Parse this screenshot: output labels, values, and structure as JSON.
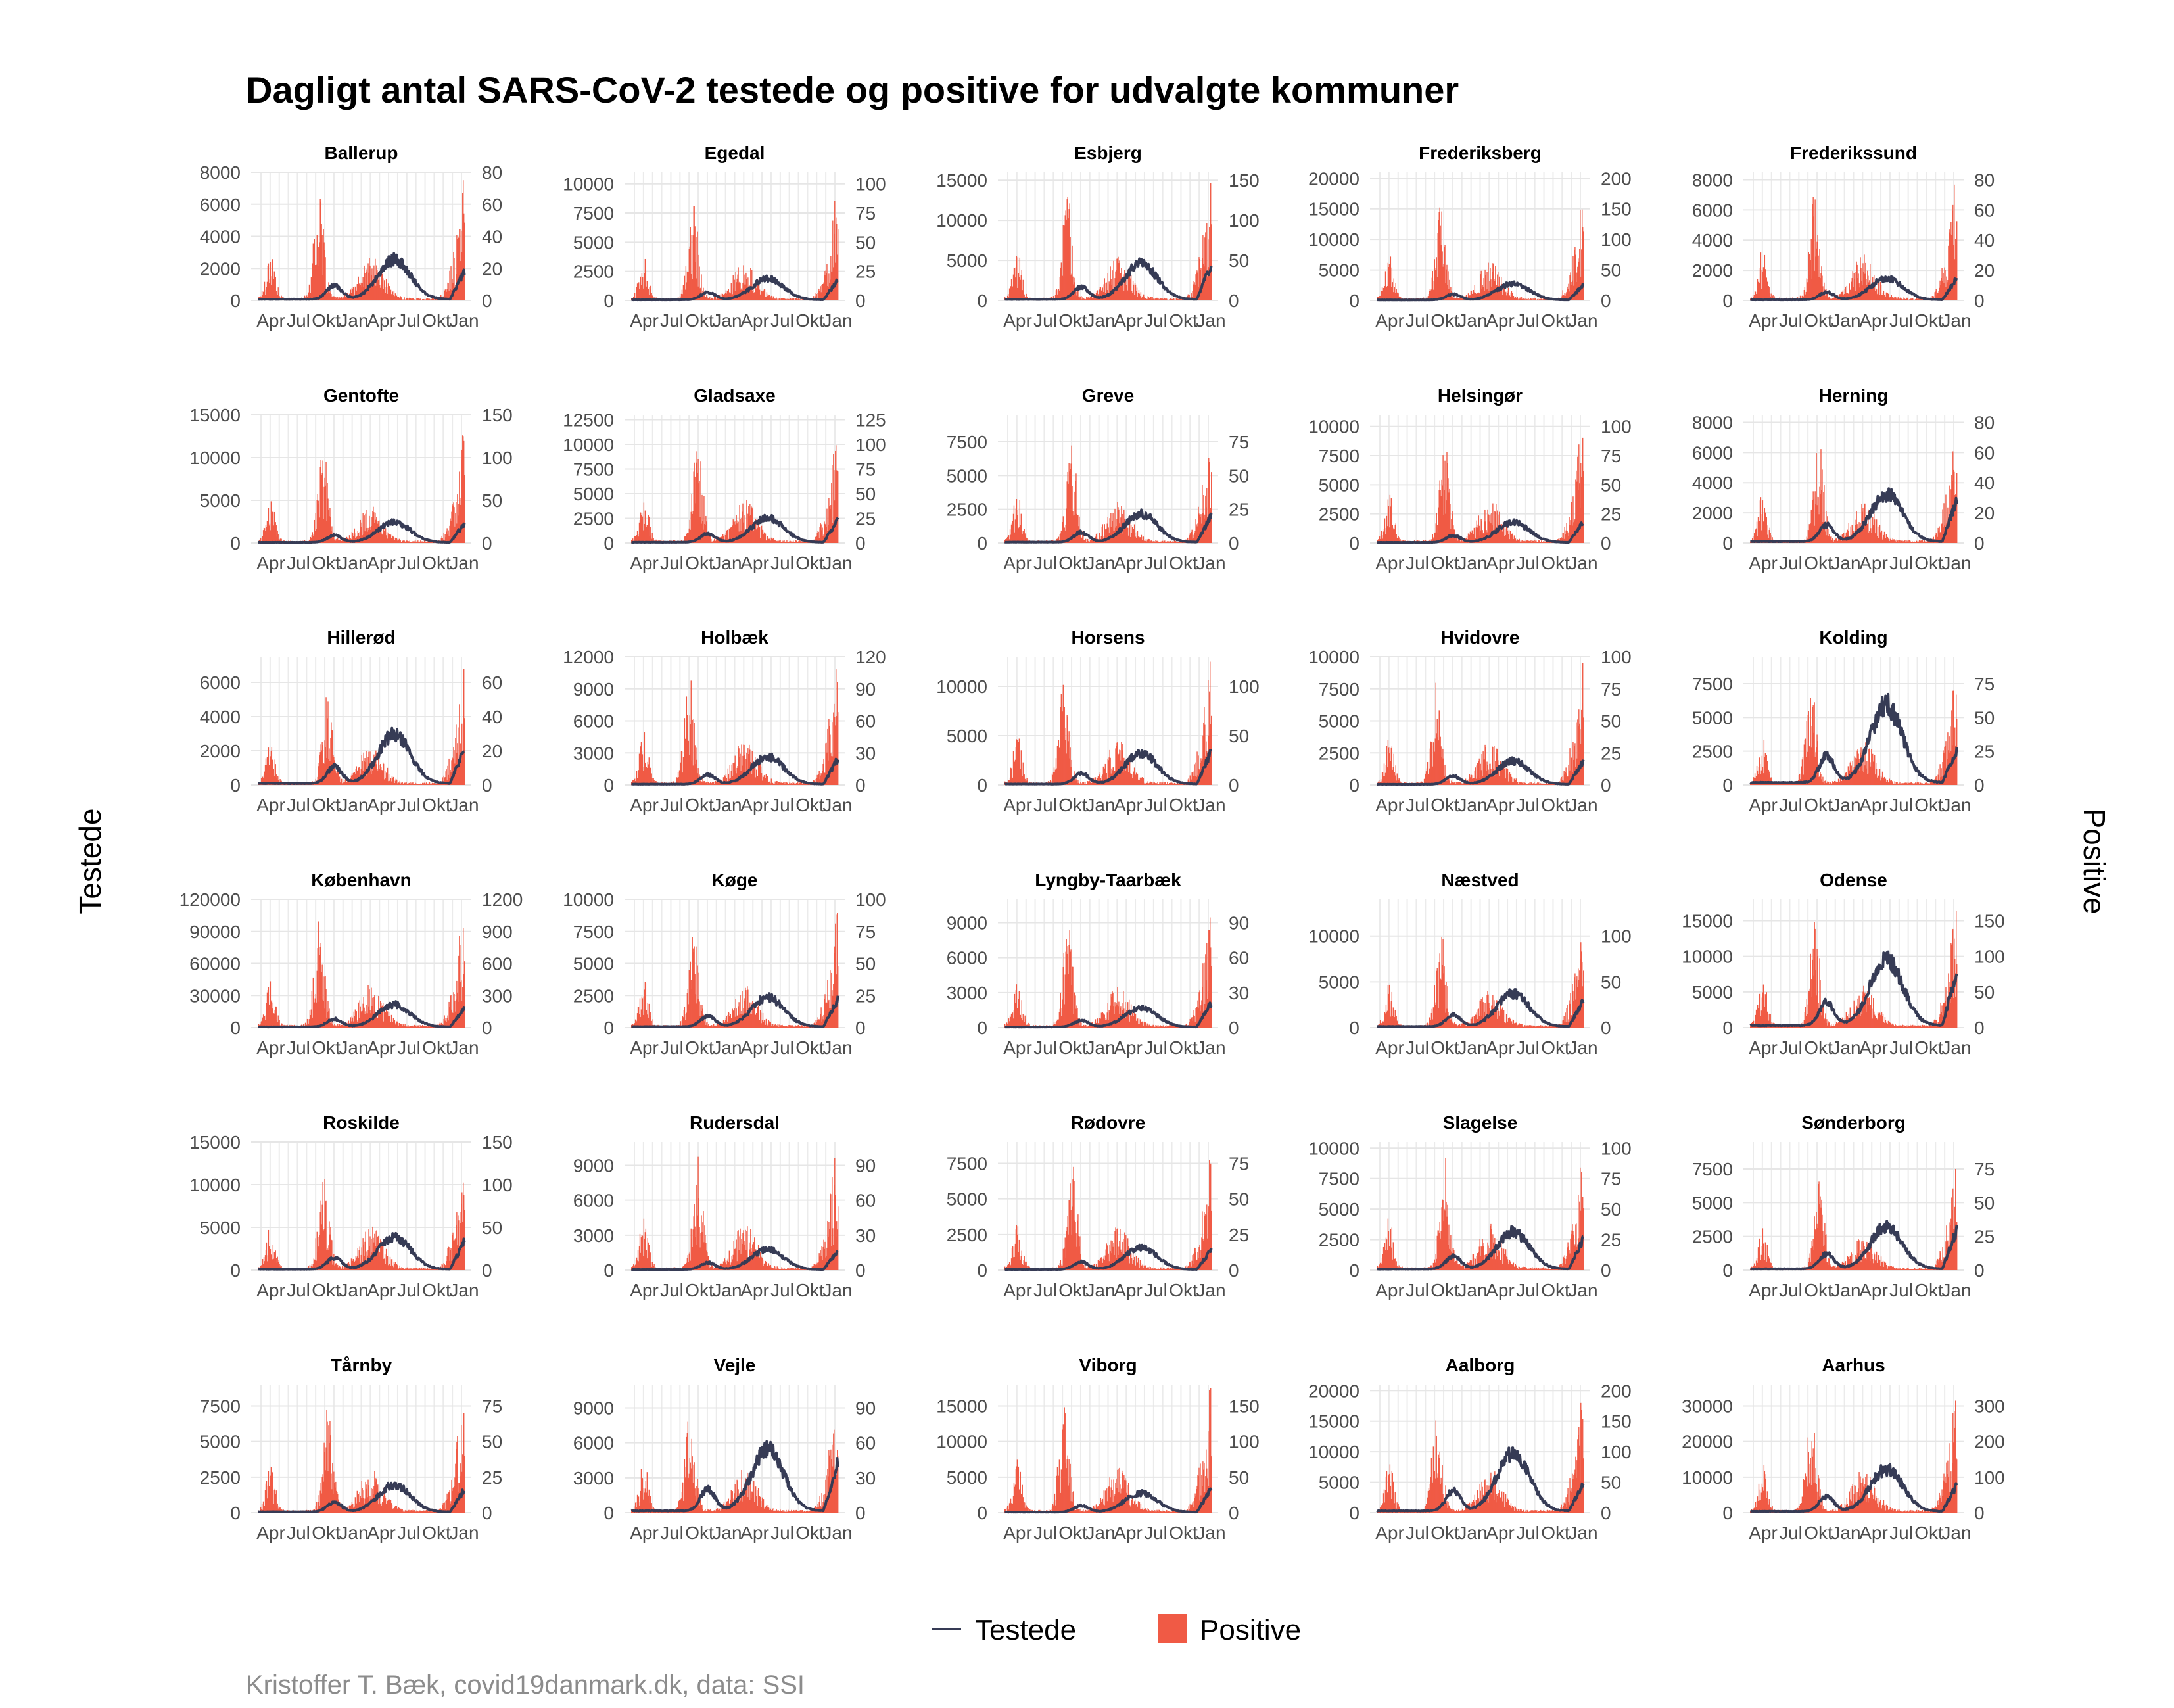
{
  "chart_data": {
    "type": "bar",
    "title": "Dagligt antal SARS-CoV-2 testede og positive for udvalgte kommuner",
    "ylabel_left": "Testede",
    "ylabel_right": "Positive",
    "caption": "Kristoffer T. Bæk, covid19danmark.dk, data: SSI",
    "x_ticks": [
      "Apr",
      "Jul",
      "Okt",
      "Jan",
      "Apr",
      "Jul",
      "Okt",
      "Jan"
    ],
    "legend": {
      "position": "bottom",
      "items": [
        {
          "name": "Testede",
          "kind": "line",
          "color": "#363b55"
        },
        {
          "name": "Positive",
          "kind": "bar",
          "color": "#f05a45"
        }
      ]
    },
    "colors": {
      "testede": "#363b55",
      "positive": "#f05a45",
      "grid": "#ebebeb"
    },
    "grid": true,
    "panels": [
      {
        "name": "Ballerup",
        "left_ticks": [
          "0",
          "2000",
          "4000",
          "6000",
          "8000"
        ],
        "right_ticks": [
          "0",
          "20",
          "40",
          "60",
          "80"
        ],
        "tested_max": 8000,
        "positive_max": 80,
        "tested_peak": 2600,
        "positive_peak": 75,
        "tested_end": 2000
      },
      {
        "name": "Egedal",
        "left_ticks": [
          "0",
          "2500",
          "5000",
          "7500",
          "10000"
        ],
        "right_ticks": [
          "0",
          "25",
          "50",
          "75",
          "100"
        ],
        "tested_max": 11000,
        "positive_max": 110,
        "tested_peak": 1900,
        "positive_peak": 95,
        "tested_end": 1900
      },
      {
        "name": "Esbjerg",
        "left_ticks": [
          "0",
          "5000",
          "10000",
          "15000"
        ],
        "right_ticks": [
          "0",
          "50",
          "100",
          "150"
        ],
        "tested_max": 16000,
        "positive_max": 160,
        "tested_peak": 4700,
        "positive_peak": 150,
        "tested_end": 5000
      },
      {
        "name": "Frederiksberg",
        "left_ticks": [
          "0",
          "5000",
          "10000",
          "15000",
          "20000"
        ],
        "right_ticks": [
          "0",
          "50",
          "100",
          "150",
          "200"
        ],
        "tested_max": 21000,
        "positive_max": 210,
        "tested_peak": 2800,
        "positive_peak": 180,
        "tested_end": 2800
      },
      {
        "name": "Frederikssund",
        "left_ticks": [
          "0",
          "2000",
          "4000",
          "6000",
          "8000"
        ],
        "right_ticks": [
          "0",
          "20",
          "40",
          "60",
          "80"
        ],
        "tested_max": 8500,
        "positive_max": 85,
        "tested_peak": 1500,
        "positive_peak": 85,
        "tested_end": 1600
      },
      {
        "name": "Gentofte",
        "left_ticks": [
          "0",
          "5000",
          "10000",
          "15000"
        ],
        "right_ticks": [
          "0",
          "50",
          "100",
          "150"
        ],
        "tested_max": 15000,
        "positive_max": 150,
        "tested_peak": 2500,
        "positive_peak": 130,
        "tested_end": 2500
      },
      {
        "name": "Gladsaxe",
        "left_ticks": [
          "0",
          "2500",
          "5000",
          "7500",
          "10000",
          "12500"
        ],
        "right_ticks": [
          "0",
          "25",
          "50",
          "75",
          "100",
          "125"
        ],
        "tested_max": 13000,
        "positive_max": 130,
        "tested_peak": 2600,
        "positive_peak": 120,
        "tested_end": 2600
      },
      {
        "name": "Greve",
        "left_ticks": [
          "0",
          "2500",
          "5000",
          "7500"
        ],
        "right_ticks": [
          "0",
          "25",
          "50",
          "75"
        ],
        "tested_max": 9500,
        "positive_max": 95,
        "tested_peak": 2200,
        "positive_peak": 88,
        "tested_end": 2200
      },
      {
        "name": "Helsingør",
        "left_ticks": [
          "0",
          "2500",
          "5000",
          "7500",
          "10000"
        ],
        "right_ticks": [
          "0",
          "25",
          "50",
          "75",
          "100"
        ],
        "tested_max": 11000,
        "positive_max": 110,
        "tested_peak": 1800,
        "positive_peak": 105,
        "tested_end": 2100
      },
      {
        "name": "Herning",
        "left_ticks": [
          "0",
          "2000",
          "4000",
          "6000",
          "8000"
        ],
        "right_ticks": [
          "0",
          "20",
          "40",
          "60",
          "80"
        ],
        "tested_max": 8500,
        "positive_max": 85,
        "tested_peak": 3300,
        "positive_peak": 80,
        "tested_end": 3200
      },
      {
        "name": "Hillerød",
        "left_ticks": [
          "0",
          "2000",
          "4000",
          "6000"
        ],
        "right_ticks": [
          "0",
          "20",
          "40",
          "60"
        ],
        "tested_max": 7500,
        "positive_max": 75,
        "tested_peak": 3000,
        "positive_peak": 68,
        "tested_end": 2300
      },
      {
        "name": "Holbæk",
        "left_ticks": [
          "0",
          "3000",
          "6000",
          "9000",
          "12000"
        ],
        "right_ticks": [
          "0",
          "30",
          "60",
          "90",
          "120"
        ],
        "tested_max": 12000,
        "positive_max": 120,
        "tested_peak": 2700,
        "positive_peak": 120,
        "tested_end": 2700
      },
      {
        "name": "Horsens",
        "left_ticks": [
          "0",
          "5000",
          "10000"
        ],
        "right_ticks": [
          "0",
          "50",
          "100"
        ],
        "tested_max": 13000,
        "positive_max": 130,
        "tested_peak": 3300,
        "positive_peak": 125,
        "tested_end": 3800
      },
      {
        "name": "Hvidovre",
        "left_ticks": [
          "0",
          "2500",
          "5000",
          "7500",
          "10000"
        ],
        "right_ticks": [
          "0",
          "25",
          "50",
          "75",
          "100"
        ],
        "tested_max": 10000,
        "positive_max": 100,
        "tested_peak": 1900,
        "positive_peak": 95,
        "tested_end": 2100
      },
      {
        "name": "Kolding",
        "left_ticks": [
          "0",
          "2500",
          "5000",
          "7500"
        ],
        "right_ticks": [
          "0",
          "25",
          "50",
          "75"
        ],
        "tested_max": 9500,
        "positive_max": 95,
        "tested_peak": 6000,
        "positive_peak": 90,
        "tested_end": 2900
      },
      {
        "name": "København",
        "left_ticks": [
          "0",
          "30000",
          "60000",
          "90000",
          "120000"
        ],
        "right_ticks": [
          "0",
          "300",
          "600",
          "900",
          "1200"
        ],
        "tested_max": 120000,
        "positive_max": 1200,
        "tested_peak": 22000,
        "positive_peak": 1150,
        "tested_end": 20000
      },
      {
        "name": "Køge",
        "left_ticks": [
          "0",
          "2500",
          "5000",
          "7500",
          "10000"
        ],
        "right_ticks": [
          "0",
          "25",
          "50",
          "75",
          "100"
        ],
        "tested_max": 10000,
        "positive_max": 100,
        "tested_peak": 2400,
        "positive_peak": 90,
        "tested_end": 2400
      },
      {
        "name": "Lyngby-Taarbæk",
        "left_ticks": [
          "0",
          "3000",
          "6000",
          "9000"
        ],
        "right_ticks": [
          "0",
          "30",
          "60",
          "90"
        ],
        "tested_max": 11000,
        "positive_max": 110,
        "tested_peak": 1700,
        "positive_peak": 100,
        "tested_end": 2400
      },
      {
        "name": "Næstved",
        "left_ticks": [
          "0",
          "5000",
          "10000"
        ],
        "right_ticks": [
          "0",
          "50",
          "100"
        ],
        "tested_max": 14000,
        "positive_max": 140,
        "tested_peak": 3800,
        "positive_peak": 120,
        "tested_end": 3200
      },
      {
        "name": "Odense",
        "left_ticks": [
          "0",
          "5000",
          "10000",
          "15000"
        ],
        "right_ticks": [
          "0",
          "50",
          "100",
          "150"
        ],
        "tested_max": 18000,
        "positive_max": 180,
        "tested_peak": 9800,
        "positive_peak": 175,
        "tested_end": 8800
      },
      {
        "name": "Roskilde",
        "left_ticks": [
          "0",
          "5000",
          "10000",
          "15000"
        ],
        "right_ticks": [
          "0",
          "50",
          "100",
          "150"
        ],
        "tested_max": 15000,
        "positive_max": 150,
        "tested_peak": 4000,
        "positive_peak": 140,
        "tested_end": 3700
      },
      {
        "name": "Rudersdal",
        "left_ticks": [
          "0",
          "3000",
          "6000",
          "9000"
        ],
        "right_ticks": [
          "0",
          "30",
          "60",
          "90"
        ],
        "tested_max": 11000,
        "positive_max": 110,
        "tested_peak": 1800,
        "positive_peak": 110,
        "tested_end": 1800
      },
      {
        "name": "Rødovre",
        "left_ticks": [
          "0",
          "2500",
          "5000",
          "7500"
        ],
        "right_ticks": [
          "0",
          "25",
          "50",
          "75"
        ],
        "tested_max": 9000,
        "positive_max": 90,
        "tested_peak": 1600,
        "positive_peak": 85,
        "tested_end": 1600
      },
      {
        "name": "Slagelse",
        "left_ticks": [
          "0",
          "2500",
          "5000",
          "7500",
          "10000"
        ],
        "right_ticks": [
          "0",
          "25",
          "50",
          "75",
          "100"
        ],
        "tested_max": 10500,
        "positive_max": 105,
        "tested_peak": 3200,
        "positive_peak": 105,
        "tested_end": 2800
      },
      {
        "name": "Sønderborg",
        "left_ticks": [
          "0",
          "2500",
          "5000",
          "7500"
        ],
        "right_ticks": [
          "0",
          "25",
          "50",
          "75"
        ],
        "tested_max": 9500,
        "positive_max": 95,
        "tested_peak": 3300,
        "positive_peak": 75,
        "tested_end": 3300
      },
      {
        "name": "Tårnby",
        "left_ticks": [
          "0",
          "2500",
          "5000",
          "7500"
        ],
        "right_ticks": [
          "0",
          "25",
          "50",
          "75"
        ],
        "tested_max": 9000,
        "positive_max": 90,
        "tested_peak": 2000,
        "positive_peak": 85,
        "tested_end": 1800
      },
      {
        "name": "Vejle",
        "left_ticks": [
          "0",
          "3000",
          "6000",
          "9000"
        ],
        "right_ticks": [
          "0",
          "30",
          "60",
          "90"
        ],
        "tested_max": 11000,
        "positive_max": 110,
        "tested_peak": 5500,
        "positive_peak": 105,
        "tested_end": 4800
      },
      {
        "name": "Viborg",
        "left_ticks": [
          "0",
          "5000",
          "10000",
          "15000"
        ],
        "right_ticks": [
          "0",
          "50",
          "100",
          "150"
        ],
        "tested_max": 18000,
        "positive_max": 180,
        "tested_peak": 2800,
        "positive_peak": 175,
        "tested_end": 3800
      },
      {
        "name": "Aalborg",
        "left_ticks": [
          "0",
          "5000",
          "10000",
          "15000",
          "20000"
        ],
        "right_ticks": [
          "0",
          "50",
          "100",
          "150",
          "200"
        ],
        "tested_max": 21000,
        "positive_max": 210,
        "tested_peak": 10000,
        "positive_peak": 200,
        "tested_end": 5400
      },
      {
        "name": "Aarhus",
        "left_ticks": [
          "0",
          "10000",
          "20000",
          "30000"
        ],
        "right_ticks": [
          "0",
          "100",
          "200",
          "300"
        ],
        "tested_max": 36000,
        "positive_max": 360,
        "tested_peak": 12500,
        "positive_peak": 340,
        "tested_end": 8500
      }
    ]
  }
}
